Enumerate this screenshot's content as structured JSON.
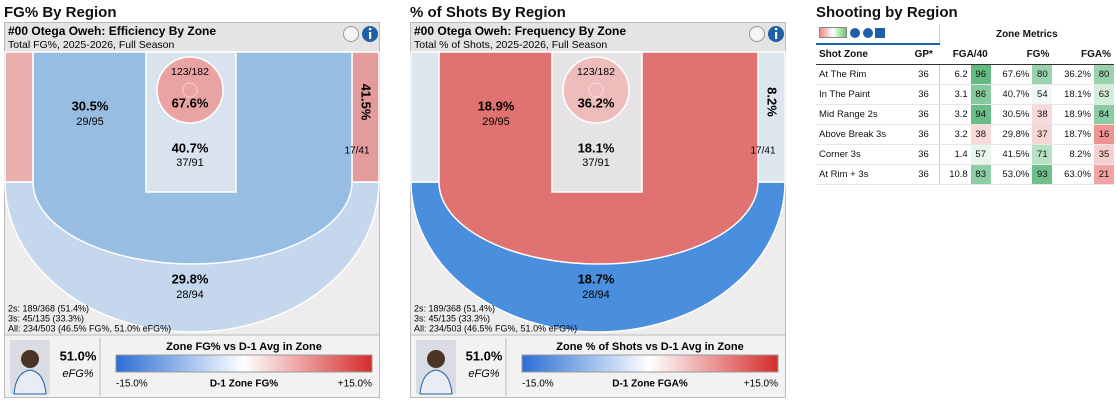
{
  "panels": [
    {
      "header": "FG% By Region",
      "title": "#00 Otega Oweh: Efficiency By Zone",
      "subtitle": "Total FG%, 2025-2026, Full Season",
      "zones": {
        "rim": {
          "value": "67.6%",
          "made": "123/182"
        },
        "paint": {
          "value": "40.7%",
          "made": "37/91"
        },
        "mid_range": {
          "value": "30.5%",
          "made": "29/95"
        },
        "corner_3": {
          "value": "41.5%",
          "made": "17/41"
        },
        "above_break_3": {
          "value": "29.8%",
          "made": "28/94"
        }
      },
      "summary": [
        "2s: 189/368 (51.4%)",
        "3s: 45/135 (33.3%)",
        "All: 234/503 (46.5% FG%, 51.0% eFG%)"
      ],
      "footer": {
        "efg": "51.0%",
        "efg_label": "eFG%",
        "legend_title": "Zone FG% vs D-1 Avg in Zone",
        "legend_min": "-15.0%",
        "legend_mid": "D-1 Zone FG%",
        "legend_max": "+15.0%"
      }
    },
    {
      "header": "% of Shots By Region",
      "title": "#00 Otega Oweh: Frequency By Zone",
      "subtitle": "Total % of Shots, 2025-2026, Full Season",
      "zones": {
        "rim": {
          "value": "36.2%",
          "made": "123/182"
        },
        "paint": {
          "value": "18.1%",
          "made": "37/91"
        },
        "mid_range": {
          "value": "18.9%",
          "made": "29/95"
        },
        "corner_3": {
          "value": "8.2%",
          "made": "17/41"
        },
        "above_break_3": {
          "value": "18.7%",
          "made": "28/94"
        }
      },
      "summary": [
        "2s: 189/368 (51.4%)",
        "3s: 45/135 (33.3%)",
        "All: 234/503 (46.5% FG%, 51.0% eFG%)"
      ],
      "footer": {
        "efg": "51.0%",
        "efg_label": "eFG%",
        "legend_title": "Zone % of Shots vs D-1 Avg in Zone",
        "legend_min": "-15.0%",
        "legend_mid": "D-1 Zone FGA%",
        "legend_max": "+15.0%"
      }
    }
  ],
  "table": {
    "title": "Shooting by Region",
    "group_header": "Zone Metrics",
    "columns": [
      "Shot Zone",
      "GP*",
      "FGA/40",
      "FG%",
      "FGA%"
    ],
    "rows": [
      [
        "At The Rim",
        36,
        6.2,
        96,
        "67.6%",
        80,
        "36.2%",
        80
      ],
      [
        "In The Paint",
        36,
        3.1,
        86,
        "40.7%",
        54,
        "18.1%",
        63
      ],
      [
        "Mid Range 2s",
        36,
        3.2,
        94,
        "30.5%",
        38,
        "18.9%",
        84
      ],
      [
        "Above Break 3s",
        36,
        3.2,
        38,
        "29.8%",
        37,
        "18.7%",
        16
      ],
      [
        "Corner 3s",
        36,
        1.4,
        57,
        "41.5%",
        71,
        "8.2%",
        35
      ],
      [
        "At Rim + 3s",
        36,
        10.8,
        83,
        "53.0%",
        93,
        "63.0%",
        21
      ]
    ]
  }
}
